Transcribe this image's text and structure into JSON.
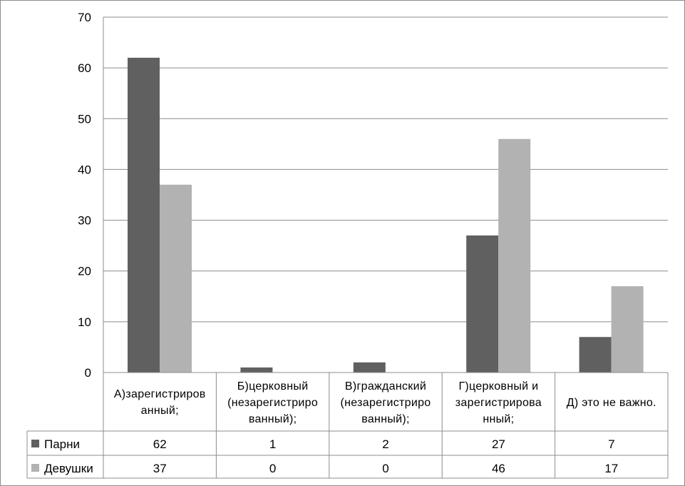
{
  "chart_data": {
    "type": "bar",
    "categories": [
      [
        "А)зарегистриров",
        "анный;"
      ],
      [
        "Б)церковный",
        "(незарегистриро",
        "ванный);"
      ],
      [
        "В)гражданский",
        "(незарегистриро",
        "ванный);"
      ],
      [
        "Г)церковный и",
        "зарегистрирова",
        "нный;"
      ],
      [
        "Д) это не важно."
      ]
    ],
    "series": [
      {
        "name": "Парни",
        "values": [
          62,
          1,
          2,
          27,
          7
        ],
        "color": "#606060"
      },
      {
        "name": "Девушки",
        "values": [
          37,
          0,
          0,
          46,
          17
        ],
        "color": "#b2b2b2"
      }
    ],
    "ylim": [
      0,
      70
    ],
    "yticks": [
      "0",
      "10",
      "20",
      "30",
      "40",
      "50",
      "60",
      "70"
    ],
    "grid": true,
    "legend": "data table"
  }
}
